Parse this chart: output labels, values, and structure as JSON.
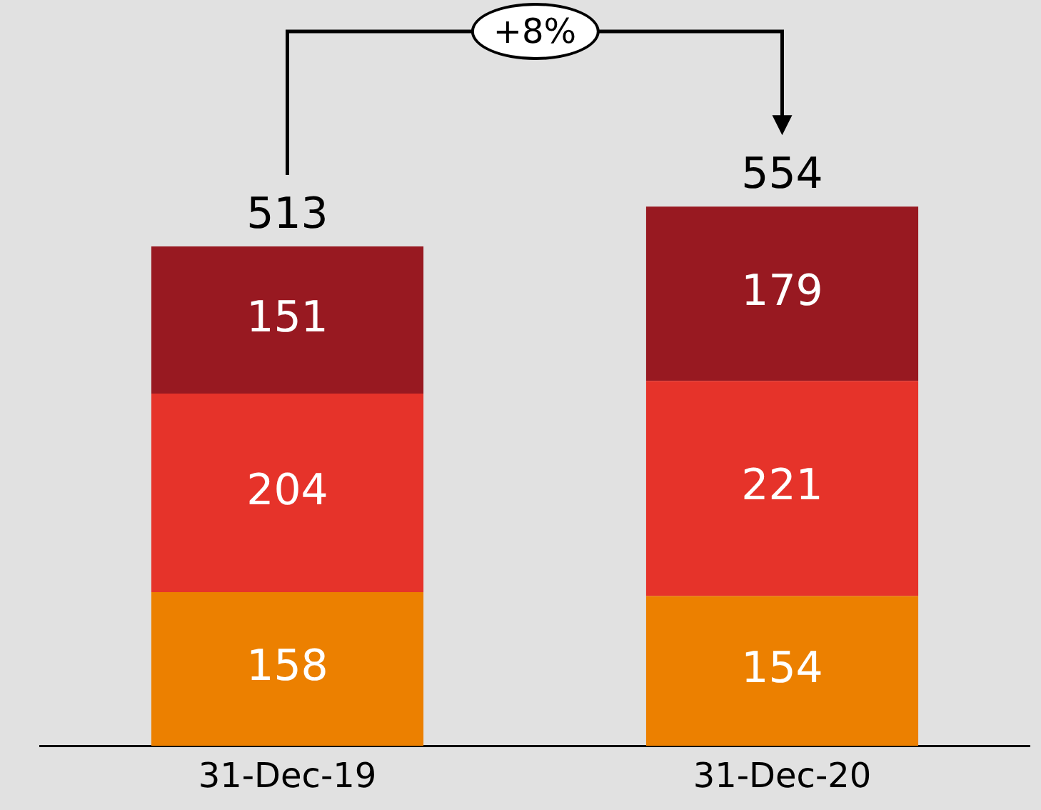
{
  "chart_data": {
    "type": "bar",
    "stacked": true,
    "categories": [
      "31-Dec-19",
      "31-Dec-20"
    ],
    "series": [
      {
        "color": "#ec8000",
        "values": [
          158,
          154
        ]
      },
      {
        "color": "#e6332a",
        "values": [
          204,
          221
        ]
      },
      {
        "color": "#981921",
        "values": [
          151,
          179
        ]
      }
    ],
    "totals": [
      "513",
      "554"
    ],
    "data_labels": true,
    "annotations": [
      "+8%"
    ],
    "legend": false,
    "grid": false,
    "tick_labels": "x"
  }
}
